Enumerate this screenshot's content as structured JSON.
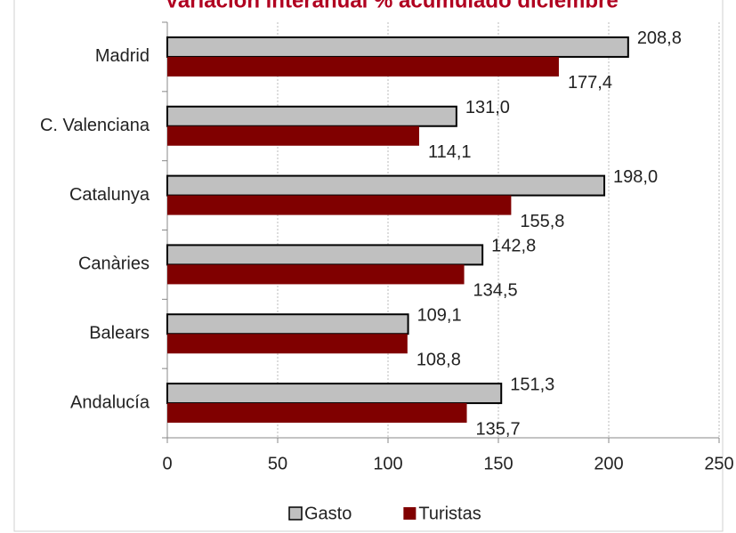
{
  "chart_data": {
    "type": "bar",
    "orientation": "horizontal",
    "title": "Variación interanual % acumulado diciembre",
    "categories": [
      "Madrid",
      "C. Valenciana",
      "Catalunya",
      "Canàries",
      "Balears",
      "Andalucía"
    ],
    "series": [
      {
        "name": "Gasto",
        "color": "#c0c0c0",
        "values": [
          208.8,
          131.0,
          198.0,
          142.8,
          109.1,
          151.3
        ],
        "value_labels": [
          "208,8",
          "131,0",
          "198,0",
          "142,8",
          "109,1",
          "151,3"
        ]
      },
      {
        "name": "Turistas",
        "color": "#800000",
        "values": [
          177.4,
          114.1,
          155.8,
          134.5,
          108.8,
          135.7
        ],
        "value_labels": [
          "177,4",
          "114,1",
          "155,8",
          "134,5",
          "108,8",
          "135,7"
        ]
      }
    ],
    "xlim": [
      0,
      250
    ],
    "xticks": [
      0,
      50,
      100,
      150,
      200,
      250
    ],
    "grid": true,
    "legend": "bottom"
  }
}
